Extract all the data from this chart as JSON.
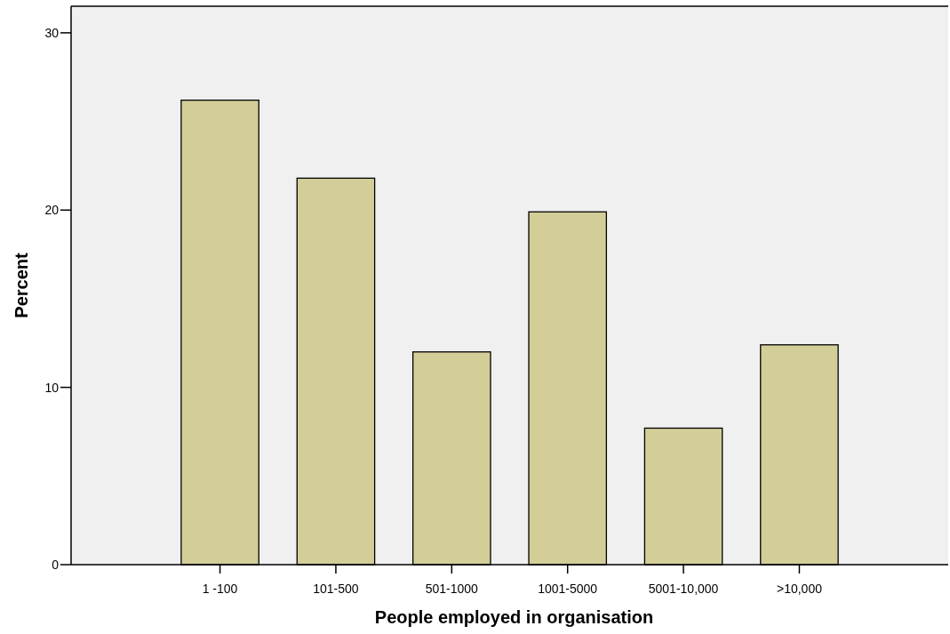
{
  "chart_data": {
    "type": "bar",
    "xlabel": "People employed in organisation",
    "ylabel": "Percent",
    "categories": [
      "1 -100",
      "101-500",
      "501-1000",
      "1001-5000",
      "5001-10,000",
      ">10,000"
    ],
    "values": [
      26.2,
      21.8,
      12.0,
      19.9,
      7.7,
      12.4
    ],
    "color": "#d3ce98",
    "ylim": [
      0,
      31.5
    ],
    "yticks": [
      0,
      10,
      20,
      30
    ],
    "grid": false
  }
}
